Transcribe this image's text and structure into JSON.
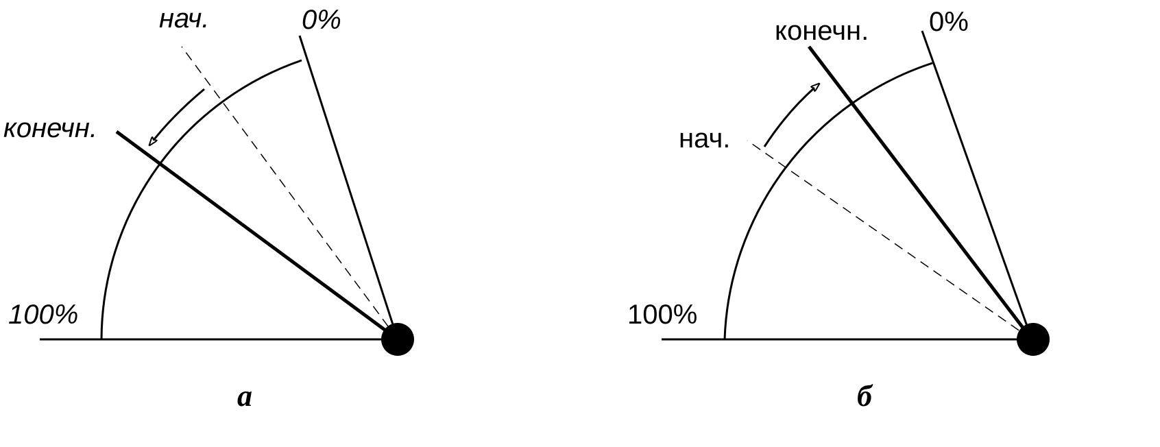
{
  "diagram_a": {
    "label_start": "нач.",
    "label_zero": "0%",
    "label_end": "конечн.",
    "label_full": "100%",
    "caption": "а"
  },
  "diagram_b": {
    "label_start": "нач.",
    "label_zero": "0%",
    "label_end": "конечн.",
    "label_full": "100%",
    "caption": "б"
  },
  "colors": {
    "ink": "#000000",
    "background": "#ffffff"
  }
}
